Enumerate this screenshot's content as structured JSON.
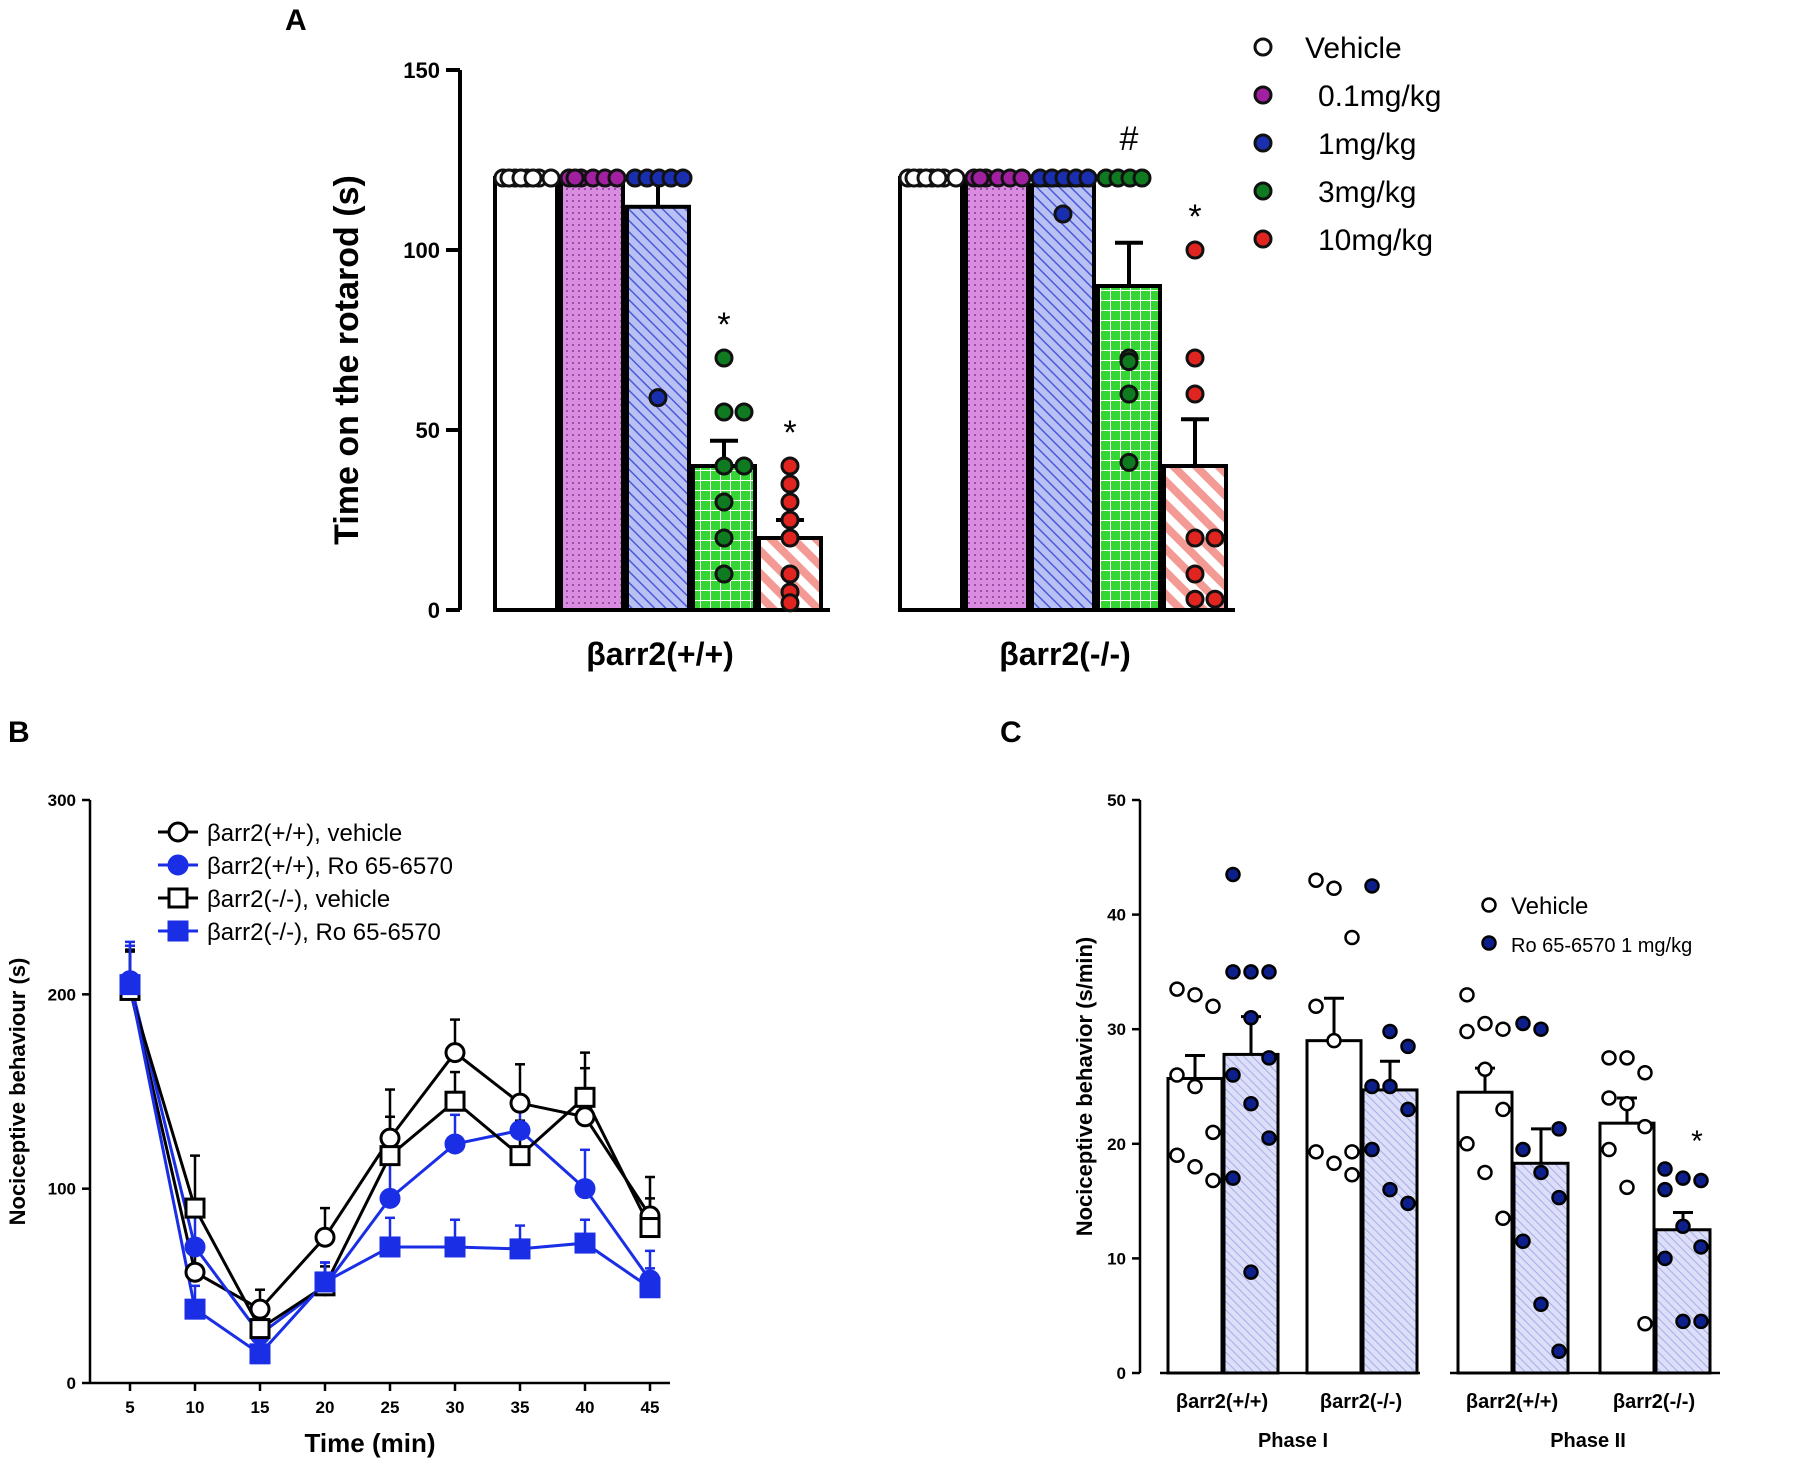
{
  "chart_data": [
    {
      "panel": "A",
      "type": "bar",
      "ylabel": "Time on the rotarod (s)",
      "ylim": [
        0,
        150
      ],
      "yticks": [
        "0",
        "50",
        "100",
        "150"
      ],
      "categories": [
        "βarr2(+/+)",
        "βarr2(-/-)"
      ],
      "legend": [
        "Vehicle",
        "0.1mg/kg",
        "1mg/kg",
        "3mg/kg",
        "10mg/kg"
      ],
      "series": [
        {
          "name": "Vehicle",
          "color": "#ffffff",
          "values": [
            120,
            120
          ],
          "sem": [
            0,
            0
          ],
          "points": [
            [
              120,
              120,
              120,
              120,
              120,
              120,
              120,
              120
            ],
            [
              120,
              120,
              120,
              120,
              120,
              120,
              120,
              120
            ]
          ]
        },
        {
          "name": "0.1mg/kg",
          "color": "#a020a0",
          "fill": "#d98ce0",
          "values": [
            120,
            120
          ],
          "sem": [
            0,
            0
          ],
          "points": [
            [
              120,
              120,
              120,
              120,
              120,
              120
            ],
            [
              120,
              120,
              120,
              120,
              120,
              120
            ]
          ]
        },
        {
          "name": "1mg/kg",
          "color": "#1a2fb0",
          "fill": "#9aa6ee",
          "values": [
            112,
            118
          ],
          "sem": [
            8,
            2
          ],
          "points": [
            [
              120,
              120,
              120,
              120,
              120,
              59
            ],
            [
              120,
              120,
              120,
              120,
              120,
              110
            ]
          ]
        },
        {
          "name": "3mg/kg",
          "color": "#0f7a1f",
          "fill": "#33cc33",
          "values": [
            40,
            90
          ],
          "sem": [
            7,
            12
          ],
          "points": [
            [
              70,
              55,
              55,
              40,
              40,
              30,
              20,
              10
            ],
            [
              120,
              120,
              120,
              120,
              70,
              69,
              60,
              41
            ]
          ]
        },
        {
          "name": "10mg/kg",
          "color": "#e0241f",
          "fill": "#f49a95",
          "values": [
            20,
            40
          ],
          "sem": [
            5,
            13
          ],
          "points": [
            [
              40,
              35,
              30,
              25,
              20,
              10,
              5,
              2
            ],
            [
              100,
              70,
              60,
              20,
              20,
              10,
              3,
              3
            ]
          ]
        }
      ],
      "annotations": [
        {
          "text": "*",
          "category": 0,
          "series": 3
        },
        {
          "text": "*",
          "category": 0,
          "series": 4
        },
        {
          "text": "#",
          "category": 1,
          "series": 3
        },
        {
          "text": "*",
          "category": 1,
          "series": 4
        }
      ]
    },
    {
      "panel": "B",
      "type": "line",
      "xlabel": "Time (min)",
      "ylabel": "Nociceptive behaviour (s)",
      "ylim": [
        0,
        300
      ],
      "yticks": [
        "0",
        "100",
        "200",
        "300"
      ],
      "x": [
        5,
        10,
        15,
        20,
        25,
        30,
        35,
        40,
        45
      ],
      "xticks": [
        "5",
        "10",
        "15",
        "20",
        "25",
        "30",
        "35",
        "40",
        "45"
      ],
      "series": [
        {
          "name": "βarr2(+/+), vehicle",
          "color": "#000000",
          "marker": "circle-open",
          "values": [
            203,
            57,
            38,
            75,
            126,
            170,
            144,
            137,
            86
          ],
          "err": [
            20,
            15,
            10,
            15,
            25,
            17,
            20,
            25,
            20
          ]
        },
        {
          "name": "βarr2(+/+), Ro 65-6570",
          "color": "#1a2ee6",
          "marker": "circle-filled",
          "values": [
            207,
            70,
            25,
            50,
            95,
            123,
            130,
            100,
            53
          ],
          "err": [
            20,
            20,
            10,
            12,
            18,
            15,
            15,
            20,
            15
          ]
        },
        {
          "name": "βarr2(-/-), vehicle",
          "color": "#000000",
          "marker": "square-open",
          "values": [
            202,
            90,
            28,
            50,
            117,
            145,
            117,
            147,
            80
          ],
          "err": [
            20,
            27,
            8,
            10,
            20,
            15,
            18,
            23,
            15
          ]
        },
        {
          "name": "βarr2(-/-), Ro 65-6570",
          "color": "#1a2ee6",
          "marker": "square-filled",
          "values": [
            205,
            38,
            15,
            52,
            70,
            70,
            69,
            72,
            49
          ],
          "err": [
            20,
            12,
            8,
            10,
            15,
            14,
            12,
            12,
            10
          ]
        }
      ]
    },
    {
      "panel": "C",
      "type": "bar",
      "ylabel": "Nociceptive behavior (s/min)",
      "ylim": [
        0,
        50
      ],
      "yticks": [
        "0",
        "10",
        "20",
        "30",
        "40",
        "50"
      ],
      "categories": [
        "βarr2(+/+)",
        "βarr2(-/-)",
        "βarr2(+/+)",
        "βarr2(-/-)"
      ],
      "groups": [
        "Phase I",
        "Phase II"
      ],
      "legend": [
        "Vehicle",
        "Ro 65-6570 1 mg/kg"
      ],
      "series": [
        {
          "name": "Vehicle",
          "color": "#000000",
          "fill": "#ffffff",
          "values": [
            25.7,
            29.0,
            24.5,
            21.8
          ],
          "sem": [
            2.0,
            3.7,
            2.1,
            2.2
          ],
          "points": [
            [
              33.5,
              33.0,
              32.0,
              26.0,
              25.0,
              21.0,
              19.0,
              18.0,
              16.8
            ],
            [
              43.0,
              42.3,
              38.0,
              32.0,
              29.0,
              19.3,
              19.3,
              18.3,
              17.3
            ],
            [
              33.0,
              30.5,
              30.0,
              29.8,
              26.5,
              23.0,
              20.0,
              17.5,
              13.5
            ],
            [
              27.5,
              27.5,
              26.2,
              24.0,
              23.5,
              21.5,
              19.5,
              16.2,
              4.3
            ]
          ]
        },
        {
          "name": "Ro 65-6570 1 mg/kg",
          "color": "#0d1f8a",
          "fill": "#c8ccf2",
          "values": [
            27.8,
            24.7,
            18.3,
            12.5
          ],
          "sem": [
            3.3,
            2.5,
            3.0,
            1.5
          ],
          "points": [
            [
              43.5,
              35.0,
              35.0,
              35.0,
              31.0,
              27.5,
              26.0,
              23.5,
              20.5,
              17.0,
              8.8
            ],
            [
              42.5,
              29.8,
              28.5,
              25.0,
              25.0,
              23.0,
              19.5,
              16.0,
              14.8
            ],
            [
              30.5,
              30.0,
              21.3,
              19.5,
              17.5,
              15.3,
              11.5,
              6.0,
              1.9
            ],
            [
              17.8,
              17.0,
              16.8,
              16.0,
              12.8,
              11.0,
              10.0,
              4.5,
              4.5
            ]
          ]
        }
      ],
      "annotations": [
        {
          "text": "*",
          "category": 3,
          "series": 1
        }
      ]
    }
  ],
  "panels": {
    "a": "A",
    "b": "B",
    "c": "C"
  }
}
